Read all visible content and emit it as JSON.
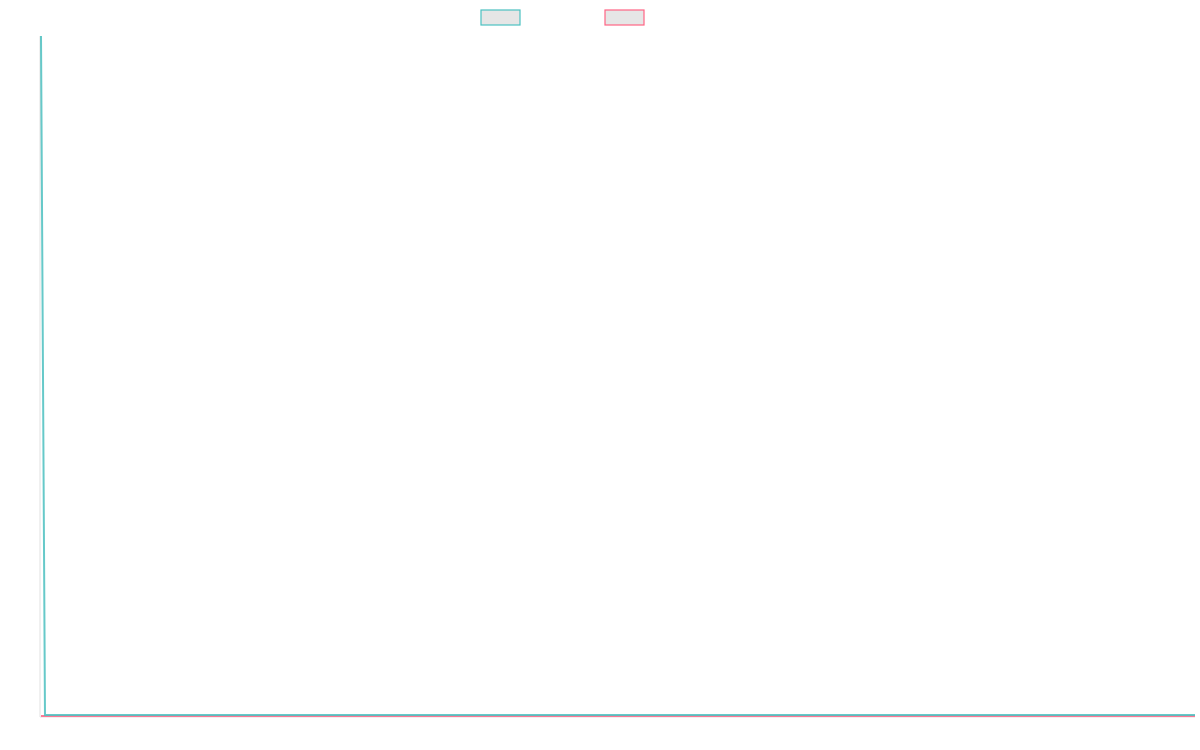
{
  "chart_data": {
    "type": "line",
    "title": "",
    "xlabel": "",
    "ylabel": "",
    "ylim": [
      0,
      1
    ],
    "grid": false,
    "legend_placement": "top",
    "series": [
      {
        "color": "#4bc0c0",
        "values": [
          1,
          0,
          0,
          0,
          0,
          0,
          0,
          0,
          0,
          0,
          0,
          0,
          0,
          0,
          0,
          0,
          0,
          0,
          0,
          0,
          0,
          0,
          0,
          0,
          0,
          0,
          0,
          0,
          0,
          0,
          0,
          0,
          0,
          0,
          0,
          0,
          0,
          0,
          0,
          0,
          0,
          0,
          0,
          0,
          0,
          0,
          0,
          0,
          0,
          0,
          0,
          0,
          0,
          0,
          0,
          0,
          0,
          0,
          0,
          0,
          0,
          0,
          0,
          0,
          0,
          0,
          0,
          0,
          0,
          0,
          0,
          0,
          0,
          0,
          0,
          0,
          0,
          0,
          0,
          0,
          0,
          0,
          0,
          0,
          0,
          0,
          0,
          0,
          0,
          0,
          0,
          0,
          0,
          0,
          0,
          0,
          0,
          0,
          0,
          0,
          0,
          0,
          0,
          0,
          0,
          0,
          0,
          0,
          0,
          0,
          0,
          0,
          0,
          0,
          0,
          0,
          0,
          0,
          0,
          0,
          0,
          0,
          0,
          0,
          0,
          0,
          0,
          0,
          0,
          0,
          0,
          0,
          0,
          0,
          0,
          0,
          0,
          0,
          0,
          0,
          0,
          0,
          0,
          0,
          0,
          0,
          0,
          0,
          0,
          0,
          0,
          0,
          0,
          0,
          0,
          0,
          0,
          0,
          0,
          0,
          0,
          0,
          0,
          0,
          0,
          0,
          0,
          0,
          0,
          0,
          0,
          0,
          0,
          0,
          0,
          0,
          0,
          0,
          0,
          0,
          0,
          0,
          0,
          0,
          0,
          0,
          0,
          0,
          0,
          0,
          0,
          0,
          0,
          0,
          0,
          0,
          0,
          0,
          0,
          0,
          0,
          0,
          0,
          0,
          0,
          0,
          0,
          0,
          0,
          0,
          0,
          0,
          0,
          0,
          0,
          0,
          0,
          0,
          0,
          0,
          0,
          0,
          0,
          0,
          0,
          0,
          0,
          0,
          0,
          0,
          0,
          0,
          0,
          0,
          0,
          0,
          0,
          0,
          0,
          0,
          0,
          0,
          0,
          0,
          0,
          0,
          0,
          0,
          0,
          0,
          0,
          0,
          0,
          0,
          0,
          0,
          0,
          0,
          0,
          0,
          0,
          0,
          0,
          0,
          0,
          0,
          0,
          0,
          0,
          0,
          0,
          0,
          0,
          0,
          0,
          0,
          0,
          0,
          0,
          0,
          0,
          0,
          0,
          0,
          0,
          0,
          0,
          0,
          0,
          0,
          0
        ]
      },
      {
        "color": "#ff6384",
        "values": [
          0,
          0,
          0,
          0,
          0,
          0,
          0,
          0,
          0,
          0,
          0,
          0,
          0,
          0,
          0,
          0,
          0,
          0,
          0,
          0,
          0,
          0,
          0,
          0,
          0,
          0,
          0,
          0,
          0,
          0,
          0,
          0,
          0,
          0,
          0,
          0,
          0,
          0,
          0,
          0,
          0,
          0,
          0,
          0,
          0,
          0,
          0,
          0,
          0,
          0,
          0,
          0,
          0,
          0,
          0,
          0,
          0,
          0,
          0,
          0,
          0,
          0,
          0,
          0,
          0,
          0,
          0,
          0,
          0,
          0,
          0,
          0,
          0,
          0,
          0,
          0,
          0,
          0,
          0,
          0,
          0,
          0,
          0,
          0,
          0,
          0,
          0,
          0,
          0,
          0,
          0,
          0,
          0,
          0,
          0,
          0,
          0,
          0,
          0,
          0,
          0,
          0,
          0,
          0,
          0,
          0,
          0,
          0,
          0,
          0,
          0,
          0,
          0,
          0,
          0,
          0,
          0,
          0,
          0,
          0,
          0,
          0,
          0,
          0,
          0,
          0,
          0,
          0,
          0,
          0,
          0,
          0,
          0,
          0,
          0,
          0,
          0,
          0,
          0,
          0,
          0,
          0,
          0,
          0,
          0,
          0,
          0,
          0,
          0,
          0,
          0,
          0,
          0,
          0,
          0,
          0,
          0,
          0,
          0,
          0,
          0,
          0,
          0,
          0,
          0,
          0,
          0,
          0,
          0,
          0,
          0,
          0,
          0,
          0,
          0,
          0,
          0,
          0,
          0,
          0,
          0,
          0,
          0,
          0,
          0,
          0,
          0,
          0,
          0,
          0,
          0,
          0,
          0,
          0,
          0,
          0,
          0,
          0,
          0,
          0,
          0,
          0,
          0,
          0,
          0,
          0,
          0,
          0,
          0,
          0,
          0,
          0,
          0,
          0,
          0,
          0,
          0,
          0,
          0,
          0,
          0,
          0,
          0,
          0,
          0,
          0,
          0,
          0,
          0,
          0,
          0,
          0,
          0,
          0,
          0,
          0,
          0,
          0,
          0,
          0,
          0,
          0,
          0,
          0,
          0,
          0,
          0,
          0,
          0,
          0,
          0,
          0,
          0,
          0,
          0,
          0,
          0,
          0,
          0,
          0,
          0,
          0,
          0,
          0,
          0,
          0,
          0,
          0,
          0,
          0,
          0,
          0,
          0,
          0,
          0,
          0,
          0,
          0,
          0,
          0,
          0,
          0,
          0,
          0,
          0,
          0,
          0,
          0
        ]
      }
    ]
  }
}
